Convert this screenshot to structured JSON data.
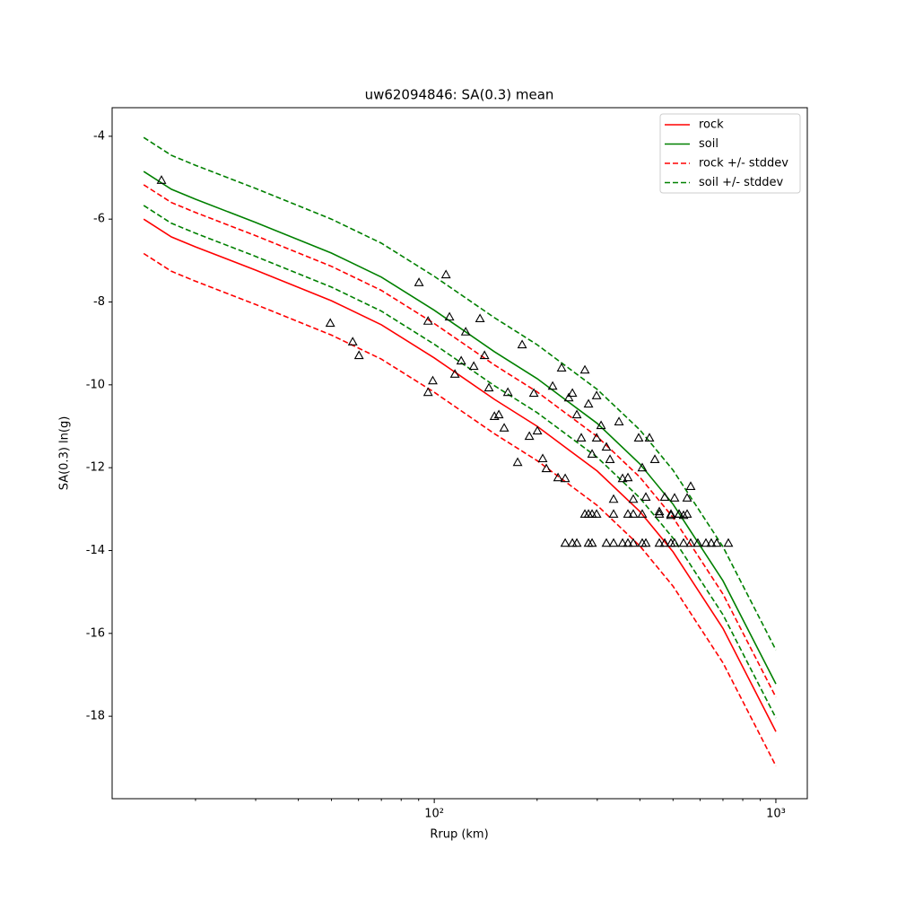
{
  "chart_data": {
    "type": "line",
    "title": "uw62094846: SA(0.3) mean",
    "x_label": "Rrup (km)",
    "y_label": "SA(0.3) ln(g)",
    "xscale": "log",
    "xlim": [
      11.4,
      1236
    ],
    "ylim": [
      -19.99,
      -3.31
    ],
    "xticks": [
      {
        "value": 100,
        "label": "10²"
      },
      {
        "value": 1000,
        "label": "10³"
      }
    ],
    "yticks": [
      -18,
      -16,
      -14,
      -12,
      -10,
      -8,
      -6,
      -4
    ],
    "legend": "upper right",
    "x": [
      14.1,
      17,
      20,
      30,
      50,
      70,
      100,
      150,
      200,
      300,
      400,
      500,
      700,
      1000
    ],
    "series": [
      {
        "name": "rock",
        "color": "#ff0000",
        "style": "solid",
        "values": [
          -6.0,
          -6.43,
          -6.67,
          -7.23,
          -7.97,
          -8.55,
          -9.35,
          -10.35,
          -11.0,
          -12.08,
          -13.06,
          -14.03,
          -15.88,
          -18.37
        ]
      },
      {
        "name": "soil",
        "color": "#008000",
        "style": "solid",
        "values": [
          -4.85,
          -5.28,
          -5.52,
          -6.08,
          -6.82,
          -7.4,
          -8.2,
          -9.2,
          -9.85,
          -10.93,
          -11.91,
          -12.88,
          -14.73,
          -17.22
        ]
      },
      {
        "name": "rock +/- stddev",
        "color": "#ff0000",
        "style": "dashed",
        "upper": [
          -5.17,
          -5.6,
          -5.84,
          -6.4,
          -7.14,
          -7.72,
          -8.52,
          -9.52,
          -10.17,
          -11.25,
          -12.23,
          -13.2,
          -15.05,
          -17.54
        ],
        "lower": [
          -6.83,
          -7.26,
          -7.5,
          -8.06,
          -8.8,
          -9.38,
          -10.18,
          -11.18,
          -11.83,
          -12.91,
          -13.89,
          -14.86,
          -16.71,
          -19.2
        ]
      },
      {
        "name": "soil +/- stddev",
        "color": "#008000",
        "style": "dashed",
        "upper": [
          -4.03,
          -4.46,
          -4.7,
          -5.26,
          -6.0,
          -6.58,
          -7.38,
          -8.38,
          -9.03,
          -10.11,
          -11.09,
          -12.06,
          -13.91,
          -16.4
        ],
        "lower": [
          -5.67,
          -6.1,
          -6.34,
          -6.9,
          -7.64,
          -8.22,
          -9.02,
          -10.02,
          -10.67,
          -11.75,
          -12.73,
          -13.7,
          -15.55,
          -18.04
        ]
      }
    ],
    "scatter": {
      "marker": "triangle",
      "color": "#000000",
      "x": [
        15.9,
        49.6,
        57.7,
        60.2,
        90.2,
        108.2,
        95.9,
        95.9,
        99,
        110.8,
        114.9,
        119.9,
        123.6,
        130.5,
        136.1,
        140.3,
        144.5,
        150,
        154.5,
        160.2,
        164.2,
        175.4,
        180.8,
        189.8,
        195.6,
        200.4,
        207.7,
        212.8,
        222.1,
        230.3,
        235.9,
        241.7,
        247.6,
        253.7,
        261.4,
        269.4,
        276.0,
        282.8,
        289.7,
        298.7,
        298.7,
        307.8,
        319.1,
        326.9,
        334.9,
        347.3,
        355.8,
        368.9,
        382.5,
        396.6,
        406.3,
        416.3,
        426.5,
        442.3,
        455.9,
        472.7,
        493.1,
        505.2,
        520.7,
        536.7,
        549.8,
        563.2,
        276.0,
        282.8,
        289.7,
        298.7,
        334.9,
        368.9,
        382.5,
        406.3,
        455.9,
        493.1,
        520.7,
        549.8,
        241.7,
        253.7,
        261.4,
        282.8,
        289.7,
        319.1,
        334.9,
        355.8,
        368.9,
        382.5,
        406.3,
        416.3,
        455.9,
        472.7,
        493.1,
        505.2,
        536.7,
        563.2,
        591.0,
        624.1,
        647.1,
        671.1,
        726.0
      ],
      "y": [
        -5.06,
        -8.51,
        -8.96,
        -9.29,
        -7.53,
        -7.34,
        -8.46,
        -10.18,
        -9.9,
        -8.36,
        -9.74,
        -9.42,
        -8.72,
        -9.55,
        -8.4,
        -9.29,
        -10.07,
        -10.76,
        -10.72,
        -11.04,
        -10.18,
        -11.87,
        -9.03,
        -11.24,
        -10.2,
        -11.11,
        -11.78,
        -12.02,
        -10.03,
        -12.24,
        -9.59,
        -12.26,
        -10.31,
        -10.2,
        -10.72,
        -11.28,
        -9.64,
        -10.46,
        -11.67,
        -10.26,
        -11.28,
        -10.98,
        -11.5,
        -11.8,
        -12.76,
        -10.89,
        -12.26,
        -12.24,
        -12.76,
        -11.28,
        -12.0,
        -12.71,
        -11.28,
        -11.8,
        -13.06,
        -12.71,
        -13.15,
        -12.73,
        -13.12,
        -13.15,
        -12.73,
        -12.45,
        -13.12,
        -13.12,
        -13.12,
        -13.12,
        -13.12,
        -13.12,
        -13.12,
        -13.12,
        -13.12,
        -13.12,
        -13.12,
        -13.12,
        -13.82,
        -13.82,
        -13.82,
        -13.82,
        -13.82,
        -13.82,
        -13.82,
        -13.82,
        -13.82,
        -13.82,
        -13.82,
        -13.82,
        -13.82,
        -13.82,
        -13.82,
        -13.82,
        -13.82,
        -13.82,
        -13.82,
        -13.82,
        -13.82,
        -13.82,
        -13.82
      ]
    }
  }
}
